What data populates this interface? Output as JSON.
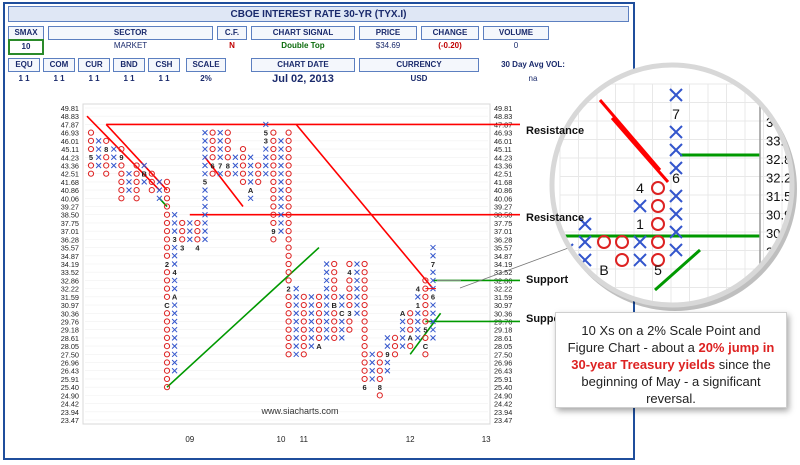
{
  "header": {
    "title": "CBOE INTEREST RATE 30-YR (TYX.I)",
    "smax_label": "SMAX",
    "smax_value": "10",
    "col_sector": "SECTOR",
    "val_sector": "MARKET",
    "col_cf": "C.F.",
    "val_cf": "N",
    "col_signal": "CHART SIGNAL",
    "val_signal": "Double Top",
    "col_price": "PRICE",
    "val_price": "$34.69",
    "col_change": "CHANGE",
    "val_change": "(-0.20)",
    "col_volume": "VOLUME",
    "val_volume": "0",
    "sub_cols": [
      "EQU",
      "COM",
      "CUR",
      "BND",
      "CSH",
      "SCALE"
    ],
    "sub_vals": [
      "1 1",
      "1 1",
      "1 1",
      "1 1",
      "1 1",
      "2%"
    ],
    "col_date": "CHART DATE",
    "val_date": "Jul 02, 2013",
    "col_currency": "CURRENCY",
    "val_currency": "USD",
    "col_avgvol": "30 Day Avg VOL:",
    "val_avgvol": "na"
  },
  "chart_data": {
    "type": "point-and-figure",
    "scale": "2%",
    "y_ticks": [
      "49.81",
      "48.83",
      "47.87",
      "46.93",
      "46.01",
      "45.11",
      "44.23",
      "43.36",
      "42.51",
      "41.68",
      "40.86",
      "40.06",
      "39.27",
      "38.50",
      "37.75",
      "37.01",
      "36.28",
      "35.57",
      "34.87",
      "34.19",
      "33.52",
      "32.86",
      "32.22",
      "31.59",
      "30.97",
      "30.36",
      "29.76",
      "29.18",
      "28.61",
      "28.05",
      "27.50",
      "26.96",
      "26.43",
      "25.91",
      "25.40",
      "24.90",
      "24.42",
      "23.94",
      "23.47"
    ],
    "x_labels": [
      {
        "text": "09",
        "col": 13
      },
      {
        "text": "10",
        "col": 25
      },
      {
        "text": "11",
        "col": 28
      },
      {
        "text": "12",
        "col": 42
      },
      {
        "text": "13",
        "col": 52
      }
    ],
    "columns": [
      {
        "type": "O",
        "top": 46.93,
        "bottom": 42.51,
        "marks": {
          "44.23": "5"
        }
      },
      {
        "type": "X",
        "top": 46.01,
        "bottom": 43.36,
        "marks": {}
      },
      {
        "type": "O",
        "top": 46.01,
        "bottom": 42.51,
        "marks": {
          "45.11": "8"
        }
      },
      {
        "type": "X",
        "top": 45.11,
        "bottom": 43.36,
        "marks": {}
      },
      {
        "type": "O",
        "top": 45.11,
        "bottom": 40.06,
        "marks": {
          "44.23": "9"
        }
      },
      {
        "type": "X",
        "top": 42.51,
        "bottom": 40.86,
        "marks": {}
      },
      {
        "type": "O",
        "top": 43.36,
        "bottom": 40.06,
        "marks": {}
      },
      {
        "type": "X",
        "top": 43.36,
        "bottom": 41.68,
        "marks": {
          "42.51": "B"
        }
      },
      {
        "type": "O",
        "top": 42.51,
        "bottom": 40.86,
        "marks": {}
      },
      {
        "type": "X",
        "top": 41.68,
        "bottom": 40.06,
        "marks": {}
      },
      {
        "type": "O",
        "top": 41.68,
        "bottom": 25.4,
        "marks": {
          "34.19": "2",
          "30.97": "C"
        }
      },
      {
        "type": "X",
        "top": 38.5,
        "bottom": 26.43,
        "marks": {
          "36.28": "3",
          "33.52": "4",
          "31.59": "A"
        }
      },
      {
        "type": "O",
        "top": 37.75,
        "bottom": 35.57,
        "marks": {
          "35.57": "3"
        }
      },
      {
        "type": "X",
        "top": 37.75,
        "bottom": 36.28,
        "marks": {}
      },
      {
        "type": "O",
        "top": 37.75,
        "bottom": 35.57,
        "marks": {
          "35.57": "4"
        }
      },
      {
        "type": "X",
        "top": 46.93,
        "bottom": 36.28,
        "marks": {
          "41.68": "5"
        }
      },
      {
        "type": "O",
        "top": 46.93,
        "bottom": 42.51,
        "marks": {
          "43.36": "6"
        }
      },
      {
        "type": "X",
        "top": 46.93,
        "bottom": 42.51,
        "marks": {
          "43.36": "7"
        }
      },
      {
        "type": "O",
        "top": 46.93,
        "bottom": 42.51,
        "marks": {
          "43.36": "8"
        }
      },
      {
        "type": "X",
        "top": 44.23,
        "bottom": 42.51,
        "marks": {}
      },
      {
        "type": "O",
        "top": 45.11,
        "bottom": 41.68,
        "marks": {}
      },
      {
        "type": "X",
        "top": 44.23,
        "bottom": 40.06,
        "marks": {
          "40.86": "A"
        }
      },
      {
        "type": "O",
        "top": 43.36,
        "bottom": 41.68,
        "marks": {}
      },
      {
        "type": "X",
        "top": 47.87,
        "bottom": 42.51,
        "marks": {
          "46.93": "5",
          "46.01": "3"
        }
      },
      {
        "type": "O",
        "top": 46.93,
        "bottom": 36.28,
        "marks": {
          "37.01": "9"
        }
      },
      {
        "type": "X",
        "top": 46.01,
        "bottom": 37.01,
        "marks": {}
      },
      {
        "type": "O",
        "top": 46.93,
        "bottom": 27.5,
        "marks": {
          "32.22": "2"
        }
      },
      {
        "type": "X",
        "top": 32.22,
        "bottom": 27.5,
        "marks": {}
      },
      {
        "type": "O",
        "top": 31.59,
        "bottom": 27.5,
        "marks": {}
      },
      {
        "type": "X",
        "top": 31.59,
        "bottom": 28.05,
        "marks": {}
      },
      {
        "type": "O",
        "top": 31.59,
        "bottom": 28.05,
        "marks": {
          "28.05": "A"
        }
      },
      {
        "type": "X",
        "top": 34.19,
        "bottom": 28.61,
        "marks": {}
      },
      {
        "type": "O",
        "top": 34.19,
        "bottom": 28.61,
        "marks": {
          "30.97": "B"
        }
      },
      {
        "type": "X",
        "top": 31.59,
        "bottom": 28.61,
        "marks": {
          "30.36": "C"
        }
      },
      {
        "type": "O",
        "top": 34.19,
        "bottom": 29.18,
        "marks": {
          "33.52": "4",
          "30.36": "3"
        }
      },
      {
        "type": "X",
        "top": 34.19,
        "bottom": 30.36,
        "marks": {}
      },
      {
        "type": "O",
        "top": 34.19,
        "bottom": 25.4,
        "marks": {
          "25.40": "6"
        }
      },
      {
        "type": "X",
        "top": 27.5,
        "bottom": 25.91,
        "marks": {}
      },
      {
        "type": "O",
        "top": 27.5,
        "bottom": 24.9,
        "marks": {
          "25.40": "8"
        }
      },
      {
        "type": "X",
        "top": 28.61,
        "bottom": 26.43,
        "marks": {
          "27.50": "9"
        }
      },
      {
        "type": "O",
        "top": 28.61,
        "bottom": 27.5,
        "marks": {}
      },
      {
        "type": "X",
        "top": 30.36,
        "bottom": 28.05,
        "marks": {
          "30.36": "A"
        }
      },
      {
        "type": "O",
        "top": 30.36,
        "bottom": 28.05,
        "marks": {
          "28.61": "A"
        }
      },
      {
        "type": "X",
        "top": 32.22,
        "bottom": 28.61,
        "marks": {
          "32.22": "4",
          "30.97": "1"
        }
      },
      {
        "type": "O",
        "top": 32.86,
        "bottom": 27.5,
        "marks": {
          "28.05": "C",
          "29.18": "5"
        }
      },
      {
        "type": "X",
        "top": 35.57,
        "bottom": 28.61,
        "marks": {
          "34.19": "7",
          "31.59": "6"
        }
      }
    ],
    "trendlines": [
      {
        "kind": "resistance",
        "color": "#ff0000",
        "level": 47.87,
        "label": "Resistance"
      },
      {
        "kind": "resistance",
        "color": "#ff0000",
        "level": 38.5,
        "label": "Resistance"
      },
      {
        "kind": "support",
        "color": "#009900",
        "level": 32.86,
        "label": "Support"
      },
      {
        "kind": "support",
        "color": "#009900",
        "level": 29.76,
        "label": "Support"
      }
    ],
    "watermark": "www.siacharts.com",
    "zoom_marks": [
      {
        "text": "7",
        "type": "X"
      },
      {
        "text": "6",
        "type": "X"
      },
      {
        "text": "4",
        "type": "X"
      },
      {
        "text": "1",
        "type": "X"
      },
      {
        "text": "B",
        "type": "O"
      },
      {
        "text": "5",
        "type": "O"
      }
    ],
    "zoom_ticks": [
      "35.",
      "34.",
      "34.1",
      "33.5",
      "32.86",
      "32.2",
      "31.5",
      "30.9",
      "30.",
      "29",
      "29"
    ]
  },
  "callout": {
    "text_a": "10 Xs on a 2% Scale Point and Figure Chart - about a ",
    "text_hl": "20% jump in 30-year Treasury yields",
    "text_b": " since the beginning of May - a significant reversal."
  },
  "colors": {
    "x_mark": "#3355cc",
    "o_mark": "#dd2222",
    "resistance": "#ff0000",
    "support": "#009900",
    "frame": "#1f4e9c"
  }
}
